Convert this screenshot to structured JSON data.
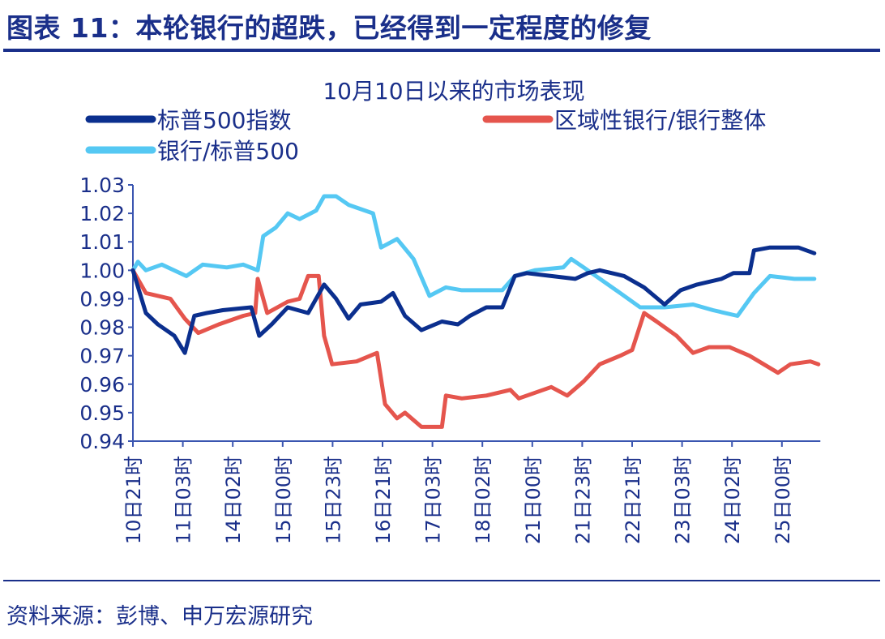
{
  "header": {
    "title": "图表 11：本轮银行的超跌，已经得到一定程度的修复"
  },
  "footer": {
    "source": "资料来源：彭博、申万宏源研究"
  },
  "chart_data": {
    "type": "line",
    "title": "10月10日以来的市场表现",
    "xlabel": "",
    "ylabel": "",
    "categories": [
      "10日21时",
      "11日03时",
      "14日02时",
      "15日00时",
      "15日23时",
      "16日21时",
      "17日03时",
      "18日02时",
      "21日00时",
      "21日23时",
      "22日21时",
      "23日03时",
      "24日02时",
      "25日00时"
    ],
    "xlim": [
      0,
      13.77
    ],
    "ylim": [
      0.94,
      1.03
    ],
    "yticks": [
      "1.03",
      "1.02",
      "1.01",
      "1.00",
      "0.99",
      "0.98",
      "0.97",
      "0.96",
      "0.95",
      "0.94"
    ],
    "grid": false,
    "legend": "top",
    "series": [
      {
        "name": "标普500指数",
        "color": "#0b2f8e",
        "x": [
          0,
          0.26,
          0.5,
          0.83,
          1.04,
          1.23,
          1.48,
          1.8,
          2.37,
          2.53,
          2.78,
          3.1,
          3.51,
          3.83,
          4.07,
          4.32,
          4.56,
          4.97,
          5.21,
          5.45,
          5.78,
          6.19,
          6.51,
          6.75,
          7.08,
          7.4,
          7.65,
          7.89,
          8.38,
          8.86,
          9.11,
          9.35,
          9.84,
          10.24,
          10.65,
          10.97,
          11.3,
          11.79,
          12.03,
          12.35,
          12.44,
          12.76,
          13.33,
          13.65
        ],
        "y": [
          1.0,
          0.985,
          0.981,
          0.977,
          0.971,
          0.984,
          0.985,
          0.986,
          0.987,
          0.977,
          0.981,
          0.987,
          0.985,
          0.995,
          0.99,
          0.983,
          0.988,
          0.989,
          0.992,
          0.984,
          0.979,
          0.982,
          0.981,
          0.984,
          0.987,
          0.987,
          0.998,
          0.999,
          0.998,
          0.997,
          0.999,
          1.0,
          0.998,
          0.994,
          0.988,
          0.993,
          0.995,
          0.997,
          0.999,
          0.999,
          1.007,
          1.008,
          1.008,
          1.006
        ]
      },
      {
        "name": "区域性银行/银行整体",
        "color": "#e5554d",
        "x": [
          0,
          0.26,
          0.75,
          1.04,
          1.31,
          1.72,
          2.21,
          2.45,
          2.5,
          2.69,
          3.1,
          3.34,
          3.51,
          3.72,
          3.83,
          3.99,
          4.48,
          4.89,
          5.05,
          5.29,
          5.45,
          5.78,
          6.19,
          6.27,
          6.59,
          7.08,
          7.56,
          7.73,
          8.38,
          8.7,
          9.03,
          9.35,
          9.76,
          10.0,
          10.24,
          10.49,
          10.89,
          11.22,
          11.54,
          11.95,
          12.35,
          12.92,
          13.17,
          13.57,
          13.73
        ],
        "y": [
          1.0,
          0.992,
          0.99,
          0.983,
          0.978,
          0.981,
          0.984,
          0.985,
          0.997,
          0.985,
          0.989,
          0.99,
          0.998,
          0.998,
          0.977,
          0.967,
          0.968,
          0.971,
          0.953,
          0.948,
          0.95,
          0.945,
          0.945,
          0.956,
          0.955,
          0.956,
          0.958,
          0.955,
          0.959,
          0.956,
          0.961,
          0.967,
          0.97,
          0.972,
          0.985,
          0.982,
          0.977,
          0.971,
          0.973,
          0.973,
          0.97,
          0.964,
          0.967,
          0.968,
          0.967
        ]
      },
      {
        "name": "银行/标普500",
        "color": "#55c8f3",
        "x": [
          0,
          0.1,
          0.26,
          0.58,
          1.07,
          1.4,
          1.88,
          2.21,
          2.5,
          2.61,
          2.86,
          3.1,
          3.34,
          3.67,
          3.83,
          4.07,
          4.32,
          4.81,
          4.97,
          5.29,
          5.62,
          5.94,
          6.27,
          6.59,
          6.92,
          7.4,
          7.65,
          8.05,
          8.62,
          8.78,
          9.03,
          9.68,
          10.16,
          10.65,
          11.22,
          11.62,
          12.11,
          12.44,
          12.76,
          13.25,
          13.65
        ],
        "y": [
          1.0,
          1.003,
          1.0,
          1.002,
          0.998,
          1.002,
          1.001,
          1.002,
          1.0,
          1.012,
          1.015,
          1.02,
          1.018,
          1.021,
          1.026,
          1.026,
          1.023,
          1.02,
          1.008,
          1.011,
          1.004,
          0.991,
          0.994,
          0.993,
          0.993,
          0.993,
          0.998,
          1.0,
          1.001,
          1.004,
          1.001,
          0.993,
          0.987,
          0.987,
          0.988,
          0.986,
          0.984,
          0.992,
          0.998,
          0.997,
          0.997
        ]
      }
    ]
  }
}
